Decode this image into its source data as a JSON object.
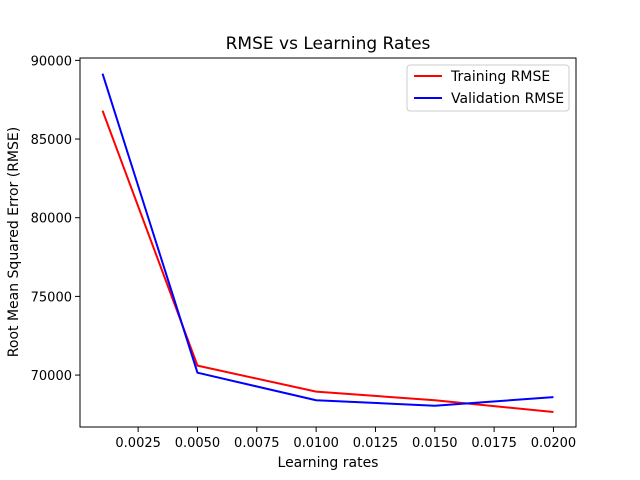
{
  "chart_data": {
    "type": "line",
    "title": "RMSE vs Learning Rates",
    "xlabel": "Learning rates",
    "ylabel": "Root Mean Squared Error (RMSE)",
    "x": [
      0.001,
      0.005,
      0.01,
      0.015,
      0.02
    ],
    "xlim": [
      5e-05,
      0.02095
    ],
    "ylim": [
      66700,
      90150
    ],
    "xticks": [
      0.0025,
      0.005,
      0.0075,
      0.01,
      0.0125,
      0.015,
      0.0175,
      0.02
    ],
    "xtick_labels": [
      "0.0025",
      "0.0050",
      "0.0075",
      "0.0100",
      "0.0125",
      "0.0150",
      "0.0175",
      "0.0200"
    ],
    "yticks": [
      70000,
      75000,
      80000,
      85000,
      90000
    ],
    "ytick_labels": [
      "70000",
      "75000",
      "80000",
      "85000",
      "90000"
    ],
    "grid": false,
    "legend_position": "top-right",
    "series": [
      {
        "name": "Training RMSE",
        "color": "#ff0000",
        "values": [
          86800,
          70600,
          68950,
          68400,
          67650
        ]
      },
      {
        "name": "Validation RMSE",
        "color": "#0000ff",
        "values": [
          89150,
          70150,
          68400,
          68050,
          68600
        ]
      }
    ]
  }
}
